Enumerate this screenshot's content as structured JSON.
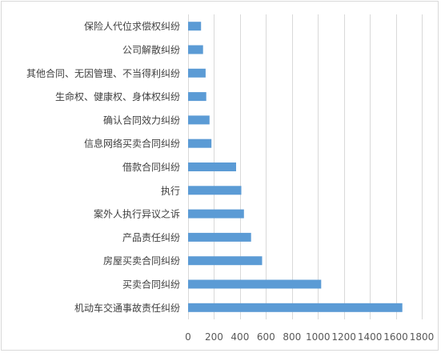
{
  "chart_data": {
    "type": "bar",
    "orientation": "horizontal",
    "categories": [
      "保险人代位求偿权纠纷",
      "公司解散纠纷",
      "其他合同、无因管理、不当得利纠纷",
      "生命权、健康权、身体权纠纷",
      "确认合同效力纠纷",
      "信息网络买卖合同纠纷",
      "借款合同纠纷",
      "执行",
      "案外人执行异议之诉",
      "产品责任纠纷",
      "房屋买卖合同纠纷",
      "买卖合同纠纷",
      "机动车交通事故责任纠纷"
    ],
    "values": [
      100,
      115,
      135,
      140,
      165,
      180,
      370,
      410,
      430,
      485,
      570,
      1025,
      1650
    ],
    "xlim": [
      0,
      1800
    ],
    "xticks": [
      "0",
      "200",
      "400",
      "600",
      "800",
      "1000",
      "1200",
      "1400",
      "1600",
      "1800"
    ],
    "grid": true,
    "legend": "none",
    "bar_color": "#5b9bd5",
    "grid_color": "#d9d9d9",
    "title": "",
    "xlabel": "",
    "ylabel": ""
  }
}
